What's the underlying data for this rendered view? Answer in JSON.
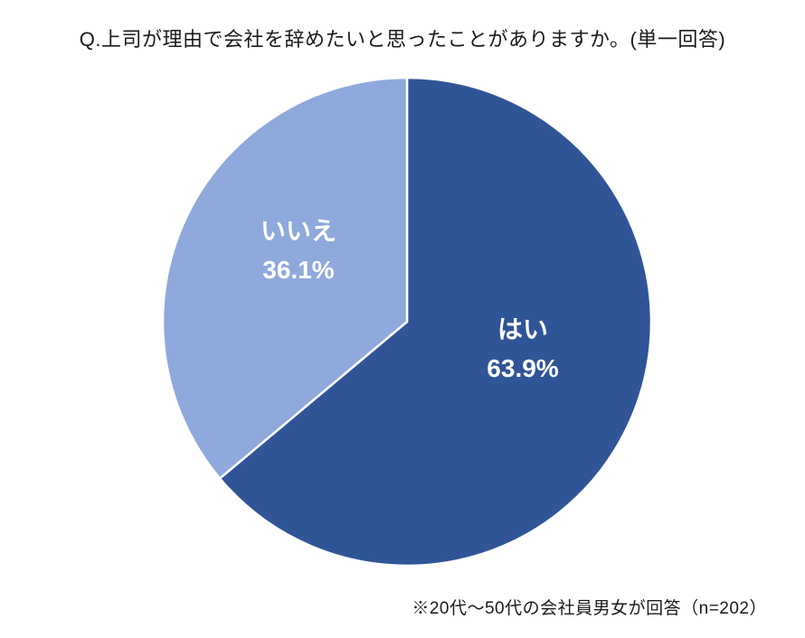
{
  "chart_data": {
    "type": "pie",
    "title": "Q.上司が理由で会社を辞めたいと思ったことがありますか。(単一回答)",
    "annotation": "※20代～50代の会社員男女が回答（n=202）",
    "categories": [
      "はい",
      "いいえ"
    ],
    "values": [
      63.9,
      36.1
    ],
    "slices": [
      {
        "label": "はい",
        "value": 63.9,
        "display": "63.9%",
        "color": "#2F5597"
      },
      {
        "label": "いいえ",
        "value": 36.1,
        "display": "36.1%",
        "color": "#8EA9DB"
      }
    ],
    "start_angle_deg": 0,
    "direction": "clockwise",
    "separator_color": "#FFFFFF",
    "label_color": "#FFFFFF",
    "legend": "none",
    "background": "#FFFFFF"
  }
}
